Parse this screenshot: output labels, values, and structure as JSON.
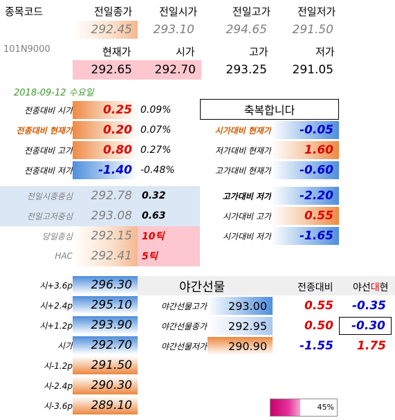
{
  "header": {
    "code_label": "종목코드",
    "code_value": "101N9000",
    "prev_close_label": "전일종가",
    "prev_open_label": "전일시가",
    "prev_high_label": "전일고가",
    "prev_low_label": "전일저가",
    "prev_close": "292.45",
    "prev_open": "293.10",
    "prev_high": "294.65",
    "prev_low": "291.50",
    "current_label": "현재가",
    "open_label": "시가",
    "high_label": "고가",
    "low_label": "저가",
    "current": "292.65",
    "open": "292.70",
    "high": "293.25",
    "low": "291.05"
  },
  "date": "2018-09-12 수요일",
  "congrats": "축복합니다",
  "vs_prev": [
    {
      "label": "전종대비 시가",
      "value": "0.25",
      "pct": "0.09%"
    },
    {
      "label": "전종대비 현재가",
      "value": "0.20",
      "pct": "0.07%"
    },
    {
      "label": "전종대비 고가",
      "value": "0.80",
      "pct": "0.27%"
    },
    {
      "label": "전종대비 저가",
      "value": "-1.40",
      "pct": "-0.48%"
    }
  ],
  "vs_current": [
    {
      "label": "시가대비 현재가",
      "value": "-0.05"
    },
    {
      "label": "저가대비 현재가",
      "value": "1.60"
    },
    {
      "label": "고가대비 현재가",
      "value": "-0.60"
    }
  ],
  "center": [
    {
      "label": "전일시종중심",
      "value": "292.78",
      "extra": "0.32"
    },
    {
      "label": "전일고저중심",
      "value": "293.08",
      "extra": "0.63"
    },
    {
      "label": "당일종심",
      "value": "292.15",
      "extra": "10틱"
    },
    {
      "label": "HAC",
      "value": "292.41",
      "extra": "5틱"
    }
  ],
  "range": [
    {
      "label": "고가대비 저가",
      "value": "-2.20"
    },
    {
      "label": "시가대비 고가",
      "value": "0.55"
    },
    {
      "label": "시가대비 저가",
      "value": "-1.65"
    }
  ],
  "ladder": [
    {
      "label": "시+3.6p",
      "value": "296.30"
    },
    {
      "label": "시+2.4p",
      "value": "295.10"
    },
    {
      "label": "시+1.2p",
      "value": "293.90"
    },
    {
      "label": "시가",
      "value": "292.70"
    },
    {
      "label": "시-1.2p",
      "value": "291.50"
    },
    {
      "label": "시-2.4p",
      "value": "290.30"
    },
    {
      "label": "시-3.6p",
      "value": "289.10"
    }
  ],
  "night": {
    "title": "야간선물",
    "col1": "전종대비",
    "col2_a": "야선",
    "col2_b": "대",
    "col2_c": "현",
    "rows": [
      {
        "label": "야간선물고가",
        "value": "293.00",
        "vs_prev": "0.55",
        "vs_cur": "-0.35"
      },
      {
        "label": "야간선물종가",
        "value": "292.95",
        "vs_prev": "0.50",
        "vs_cur": "-0.30"
      },
      {
        "label": "야간선물저가",
        "value": "290.90",
        "vs_prev": "-1.55",
        "vs_cur": "1.75"
      }
    ]
  },
  "progress": {
    "percent": 45,
    "label": "45%"
  },
  "colors": {
    "red": "#e00000",
    "blue": "#0000d0",
    "pink": "#fcc7cf",
    "green_date": "#3a9a2a",
    "magenta": "#d4007a"
  }
}
